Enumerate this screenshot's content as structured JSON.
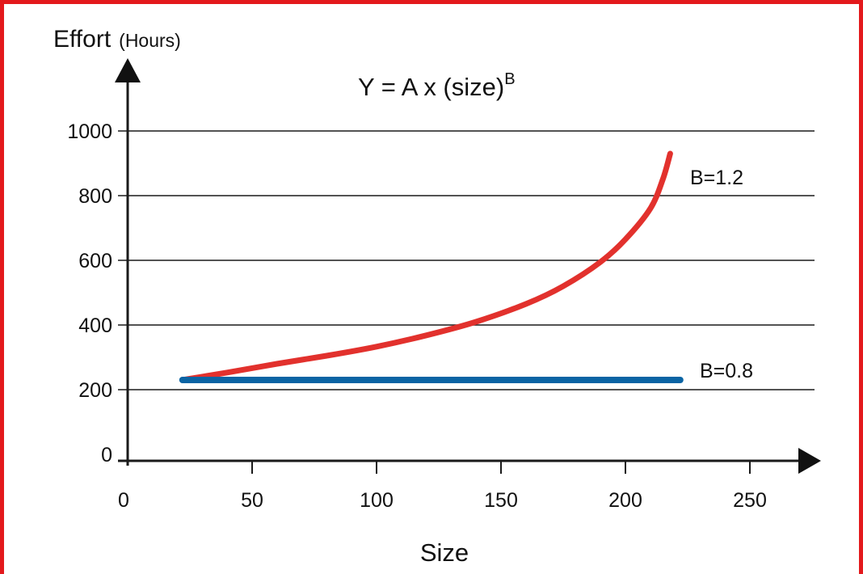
{
  "chart_data": {
    "type": "line",
    "title": "Y = A x (size)",
    "title_superscript": "B",
    "ylabel": "Effort",
    "ylabel_unit": "(Hours)",
    "xlabel": "Size",
    "xlim": [
      0,
      270
    ],
    "ylim": [
      0,
      1100
    ],
    "x_ticks": [
      0,
      50,
      100,
      150,
      200,
      250
    ],
    "y_ticks": [
      0,
      200,
      400,
      600,
      800,
      1000
    ],
    "grid": "horizontal",
    "series": [
      {
        "name": "B=1.2",
        "color": "#e2312d",
        "x": [
          22,
          40,
          60,
          80,
          100,
          120,
          140,
          160,
          175,
          190,
          200,
          210,
          215,
          218
        ],
        "y": [
          230,
          253,
          280,
          305,
          333,
          368,
          410,
          465,
          520,
          595,
          665,
          760,
          850,
          930
        ]
      },
      {
        "name": "B=0.8",
        "color": "#0a64a4",
        "x": [
          22,
          222
        ],
        "y": [
          230,
          230
        ]
      }
    ]
  }
}
